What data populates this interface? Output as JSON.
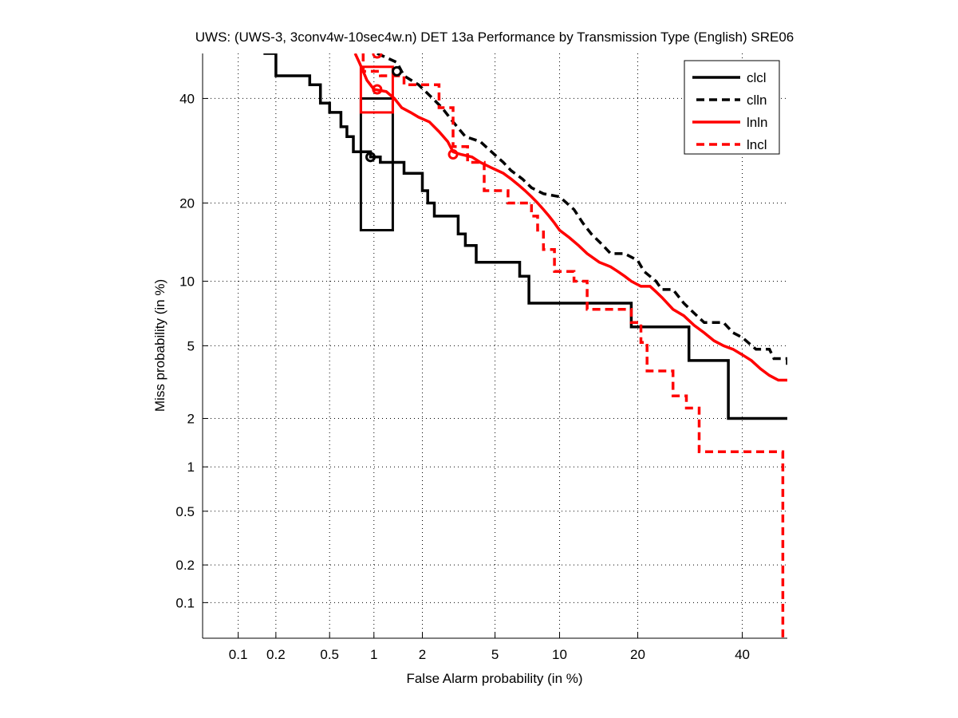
{
  "chart_data": {
    "type": "line",
    "title": "UWS: (UWS-3, 3conv4w-10sec4w.n) DET 13a Performance by Transmission Type (English) SRE06",
    "xlabel": "False Alarm probability (in %)",
    "ylabel": "Miss probability (in %)",
    "x_scale": "normal-deviate",
    "y_scale": "normal-deviate",
    "xlim": [
      0.05,
      50
    ],
    "ylim": [
      0.05,
      50
    ],
    "x_ticks": [
      0.1,
      0.2,
      0.5,
      1,
      2,
      5,
      10,
      20,
      40
    ],
    "x_tick_labels": [
      "0.1",
      "0.2",
      "0.5",
      "1",
      "2",
      "5",
      "10",
      "20",
      "40"
    ],
    "y_ticks": [
      0.1,
      0.2,
      0.5,
      1,
      2,
      5,
      10,
      20,
      40
    ],
    "y_tick_labels": [
      "0.1",
      "0.2",
      "0.5",
      "1",
      "2",
      "5",
      "10",
      "20",
      "40"
    ],
    "grid": true,
    "legend_position": "top-right",
    "series": [
      {
        "name": "clcl",
        "color": "#000000",
        "style": "solid",
        "points": [
          [
            0.16,
            50
          ],
          [
            0.2,
            50
          ],
          [
            0.2,
            45
          ],
          [
            0.36,
            45
          ],
          [
            0.36,
            43
          ],
          [
            0.43,
            43
          ],
          [
            0.43,
            39
          ],
          [
            0.5,
            39
          ],
          [
            0.5,
            37
          ],
          [
            0.6,
            37
          ],
          [
            0.6,
            34
          ],
          [
            0.66,
            34
          ],
          [
            0.66,
            32
          ],
          [
            0.73,
            32
          ],
          [
            0.73,
            29
          ],
          [
            0.95,
            29
          ],
          [
            0.95,
            28
          ],
          [
            1.1,
            28
          ],
          [
            1.1,
            27
          ],
          [
            1.55,
            27
          ],
          [
            1.55,
            25
          ],
          [
            2.0,
            25
          ],
          [
            2.0,
            22
          ],
          [
            2.15,
            22
          ],
          [
            2.15,
            20
          ],
          [
            2.35,
            20
          ],
          [
            2.35,
            18
          ],
          [
            3.2,
            18
          ],
          [
            3.2,
            15.5
          ],
          [
            3.5,
            15.5
          ],
          [
            3.5,
            14
          ],
          [
            4.0,
            14
          ],
          [
            4.0,
            12
          ],
          [
            6.6,
            12
          ],
          [
            6.6,
            10.5
          ],
          [
            7.3,
            10.5
          ],
          [
            7.3,
            8
          ],
          [
            19,
            8
          ],
          [
            19,
            6.2
          ],
          [
            29,
            6.2
          ],
          [
            29,
            4.2
          ],
          [
            37,
            4.2
          ],
          [
            37,
            2
          ],
          [
            50,
            2
          ]
        ]
      },
      {
        "name": "clln",
        "color": "#000000",
        "style": "dashed",
        "points": [
          [
            1.05,
            50
          ],
          [
            1.4,
            48
          ],
          [
            1.55,
            45
          ],
          [
            1.9,
            43
          ],
          [
            2.3,
            40
          ],
          [
            2.6,
            38
          ],
          [
            3.0,
            35
          ],
          [
            3.5,
            32
          ],
          [
            4.2,
            31
          ],
          [
            4.8,
            29
          ],
          [
            5.5,
            27
          ],
          [
            6.0,
            25.5
          ],
          [
            6.8,
            24
          ],
          [
            7.5,
            22.5
          ],
          [
            8.5,
            21.5
          ],
          [
            10,
            21
          ],
          [
            11.5,
            19
          ],
          [
            12.5,
            17
          ],
          [
            13.5,
            15.5
          ],
          [
            15,
            14
          ],
          [
            16,
            13
          ],
          [
            18,
            13
          ],
          [
            20,
            12.2
          ],
          [
            21,
            11
          ],
          [
            23,
            10
          ],
          [
            24,
            9.2
          ],
          [
            26,
            9.2
          ],
          [
            28,
            8
          ],
          [
            30,
            7.2
          ],
          [
            32,
            6.5
          ],
          [
            36,
            6.5
          ],
          [
            38,
            5.8
          ],
          [
            40,
            5.5
          ],
          [
            43,
            4.8
          ],
          [
            46,
            4.8
          ],
          [
            47,
            4.3
          ],
          [
            50,
            4.3
          ],
          [
            50,
            3.8
          ]
        ]
      },
      {
        "name": "lnln",
        "color": "#ff0000",
        "style": "solid",
        "points": [
          [
            0.75,
            50
          ],
          [
            0.8,
            48
          ],
          [
            0.85,
            46
          ],
          [
            0.9,
            44
          ],
          [
            1.0,
            42
          ],
          [
            1.2,
            41.5
          ],
          [
            1.35,
            40
          ],
          [
            1.5,
            38
          ],
          [
            1.7,
            37
          ],
          [
            1.9,
            36
          ],
          [
            2.2,
            35
          ],
          [
            2.5,
            33
          ],
          [
            2.8,
            31
          ],
          [
            3.0,
            29
          ],
          [
            3.3,
            28.5
          ],
          [
            3.8,
            28
          ],
          [
            4.2,
            27
          ],
          [
            4.8,
            26
          ],
          [
            5.5,
            25
          ],
          [
            6.0,
            24
          ],
          [
            6.5,
            23
          ],
          [
            7.0,
            22
          ],
          [
            7.5,
            21
          ],
          [
            8.0,
            20
          ],
          [
            8.5,
            19
          ],
          [
            9.0,
            18
          ],
          [
            9.5,
            17
          ],
          [
            10,
            16
          ],
          [
            11,
            15
          ],
          [
            12,
            14
          ],
          [
            13,
            13
          ],
          [
            14.5,
            12
          ],
          [
            16,
            11.5
          ],
          [
            17,
            11
          ],
          [
            18,
            10.5
          ],
          [
            19,
            10
          ],
          [
            20.5,
            9.5
          ],
          [
            22,
            9.5
          ],
          [
            23,
            9
          ],
          [
            24,
            8.5
          ],
          [
            26,
            7.5
          ],
          [
            28,
            7
          ],
          [
            30,
            6.3
          ],
          [
            32,
            5.8
          ],
          [
            34,
            5.3
          ],
          [
            36,
            5
          ],
          [
            38,
            4.8
          ],
          [
            40,
            4.5
          ],
          [
            42,
            4.2
          ],
          [
            44,
            3.8
          ],
          [
            46,
            3.5
          ],
          [
            48,
            3.3
          ],
          [
            50,
            3.3
          ]
        ]
      },
      {
        "name": "lncl",
        "color": "#ff0000",
        "style": "dashed",
        "points": [
          [
            0.85,
            50
          ],
          [
            0.85,
            46
          ],
          [
            1.1,
            46
          ],
          [
            1.1,
            45
          ],
          [
            1.55,
            45
          ],
          [
            1.55,
            43
          ],
          [
            2.5,
            43
          ],
          [
            2.5,
            38
          ],
          [
            3.0,
            38
          ],
          [
            3.0,
            30
          ],
          [
            3.6,
            30
          ],
          [
            3.6,
            27
          ],
          [
            4.4,
            27
          ],
          [
            4.4,
            22
          ],
          [
            5.8,
            22
          ],
          [
            5.8,
            20
          ],
          [
            7.5,
            20
          ],
          [
            7.5,
            18
          ],
          [
            8.0,
            18
          ],
          [
            8.0,
            16
          ],
          [
            8.5,
            16
          ],
          [
            8.5,
            13.5
          ],
          [
            9.5,
            13.5
          ],
          [
            9.5,
            11
          ],
          [
            11.5,
            11
          ],
          [
            11.5,
            10
          ],
          [
            13,
            10
          ],
          [
            13,
            7.5
          ],
          [
            19,
            7.5
          ],
          [
            19,
            6.5
          ],
          [
            20.5,
            6.5
          ],
          [
            20.5,
            5.2
          ],
          [
            21.5,
            5.2
          ],
          [
            21.5,
            3.7
          ],
          [
            26,
            3.7
          ],
          [
            26,
            2.7
          ],
          [
            28.5,
            2.7
          ],
          [
            28.5,
            2.3
          ],
          [
            31,
            2.3
          ],
          [
            31,
            1.25
          ],
          [
            49,
            1.25
          ],
          [
            49,
            0.05
          ]
        ]
      }
    ],
    "markers": [
      {
        "series": "clcl",
        "symbol": "circle",
        "x": 0.95,
        "y": 28
      },
      {
        "series": "clln",
        "symbol": "circle",
        "x": 1.4,
        "y": 46
      },
      {
        "series": "lnln",
        "symbol": "circle",
        "x": 1.05,
        "y": 42
      },
      {
        "series": "lncl",
        "symbol": "circle",
        "x": 3.0,
        "y": 28.5
      },
      {
        "series": "lnln",
        "symbol": "circle",
        "x": 1.05,
        "y": 50
      }
    ],
    "confidence_boxes": [
      {
        "series": "clcl",
        "color": "#000000",
        "x": [
          0.82,
          1.32
        ],
        "y": [
          16,
          40
        ]
      },
      {
        "series": "lnln",
        "color": "#ff0000",
        "x": [
          0.82,
          1.32
        ],
        "y": [
          37,
          47
        ]
      }
    ]
  }
}
